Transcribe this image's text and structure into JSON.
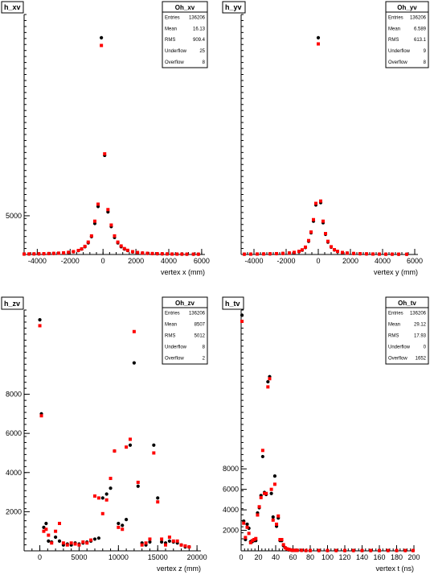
{
  "chart_data": [
    {
      "type": "scatter",
      "title": "h_xv",
      "xlabel": "vertex x (mm)",
      "ylabel": "",
      "xlim": [
        -4800,
        6200
      ],
      "ylim": [
        0,
        31000
      ],
      "xticks": [
        -4000,
        -2000,
        0,
        2000,
        4000,
        6000
      ],
      "xtick_labels": [
        "-4000",
        "-2000",
        "0",
        "2000",
        "4000",
        "6000"
      ],
      "yticks": [
        5000
      ],
      "ytick_labels": [
        "5000"
      ],
      "stats": {
        "title": "Oh_xv",
        "rows": [
          {
            "label": "Entries",
            "value": "136206"
          },
          {
            "label": "Mean",
            "value": "16.13"
          },
          {
            "label": "RMS",
            "value": "909.4"
          },
          {
            "label": "Underflow",
            "value": "25"
          },
          {
            "label": "Overflow",
            "value": "8"
          }
        ]
      },
      "series": [
        {
          "color": "#000000",
          "marker": "circle",
          "x": [
            -4800,
            -4500,
            -4200,
            -3900,
            -3600,
            -3300,
            -3000,
            -2700,
            -2400,
            -2100,
            -1800,
            -1500,
            -1300,
            -1100,
            -900,
            -700,
            -500,
            -300,
            -100,
            100,
            300,
            500,
            700,
            900,
            1100,
            1300,
            1500,
            1800,
            2100,
            2400,
            2700,
            3000,
            3300,
            3600,
            3900,
            4200,
            4500,
            4800,
            5100,
            5500,
            5800
          ],
          "y": [
            50,
            60,
            70,
            80,
            90,
            110,
            130,
            160,
            200,
            260,
            350,
            500,
            700,
            1000,
            1500,
            2300,
            4000,
            6200,
            28000,
            12800,
            5500,
            3600,
            2200,
            1500,
            1000,
            700,
            500,
            330,
            240,
            180,
            140,
            110,
            90,
            80,
            70,
            60,
            50,
            40,
            40,
            40,
            40
          ]
        },
        {
          "color": "#ff0000",
          "marker": "square",
          "x": [
            -4800,
            -4500,
            -4200,
            -3900,
            -3600,
            -3300,
            -3000,
            -2700,
            -2400,
            -2100,
            -1800,
            -1500,
            -1300,
            -1100,
            -900,
            -700,
            -500,
            -300,
            -100,
            100,
            300,
            500,
            700,
            900,
            1100,
            1300,
            1500,
            1800,
            2100,
            2400,
            2700,
            3000,
            3300,
            3600,
            3900,
            4200,
            4500,
            4800,
            5100,
            5500,
            5800
          ],
          "y": [
            60,
            70,
            80,
            90,
            100,
            120,
            140,
            170,
            210,
            280,
            370,
            520,
            720,
            1050,
            1600,
            2400,
            4300,
            6500,
            27000,
            13000,
            5800,
            3800,
            2400,
            1600,
            1100,
            760,
            540,
            360,
            260,
            190,
            150,
            120,
            100,
            90,
            70,
            60,
            50,
            50,
            40,
            40,
            40
          ]
        }
      ]
    },
    {
      "type": "scatter",
      "title": "h_yv",
      "xlabel": "vertex y (mm)",
      "ylabel": "",
      "xlim": [
        -4800,
        6200
      ],
      "ylim": [
        0,
        31000
      ],
      "xticks": [
        -4000,
        -2000,
        0,
        2000,
        4000,
        6000
      ],
      "xtick_labels": [
        "-4000",
        "-2000",
        "0",
        "2000",
        "4000",
        "6000"
      ],
      "yticks": [],
      "ytick_labels": [],
      "stats": {
        "title": "Oh_yv",
        "rows": [
          {
            "label": "Entries",
            "value": "136206"
          },
          {
            "label": "Mean",
            "value": "6.589"
          },
          {
            "label": "RMS",
            "value": "613.1"
          },
          {
            "label": "Underflow",
            "value": "9"
          },
          {
            "label": "Overflow",
            "value": "8"
          }
        ]
      },
      "series": [
        {
          "color": "#000000",
          "marker": "circle",
          "x": [
            -4600,
            -4200,
            -3800,
            -3400,
            -3000,
            -2600,
            -2200,
            -1800,
            -1500,
            -1200,
            -1000,
            -800,
            -600,
            -450,
            -300,
            -150,
            0,
            150,
            300,
            450,
            600,
            800,
            1000,
            1200,
            1500,
            1800,
            2200,
            2600,
            3000,
            3400,
            3800,
            4200,
            4600,
            5000,
            5500
          ],
          "y": [
            40,
            50,
            60,
            70,
            80,
            100,
            130,
            180,
            250,
            380,
            560,
            900,
            1700,
            2800,
            4300,
            6400,
            28000,
            6700,
            4100,
            2600,
            1600,
            950,
            580,
            380,
            240,
            170,
            120,
            90,
            70,
            60,
            50,
            40,
            40,
            30,
            30
          ]
        },
        {
          "color": "#ff0000",
          "marker": "square",
          "x": [
            -4600,
            -4200,
            -3800,
            -3400,
            -3000,
            -2600,
            -2200,
            -1800,
            -1500,
            -1200,
            -1000,
            -800,
            -600,
            -450,
            -300,
            -150,
            0,
            150,
            300,
            450,
            600,
            800,
            1000,
            1200,
            1500,
            1800,
            2200,
            2600,
            3000,
            3400,
            3800,
            4200,
            4600,
            5000,
            5500
          ],
          "y": [
            40,
            50,
            60,
            70,
            90,
            110,
            140,
            190,
            270,
            400,
            600,
            950,
            1800,
            2900,
            4500,
            6600,
            27200,
            6900,
            4300,
            2700,
            1700,
            1000,
            620,
            400,
            260,
            180,
            130,
            100,
            80,
            60,
            50,
            40,
            40,
            40,
            30
          ]
        }
      ]
    },
    {
      "type": "scatter",
      "title": "h_zv",
      "xlabel": "vertex z (mm)",
      "ylabel": "",
      "xlim": [
        -2000,
        20500
      ],
      "ylim": [
        0,
        12300
      ],
      "xticks": [
        0,
        5000,
        10000,
        15000,
        20000
      ],
      "xtick_labels": [
        "0",
        "5000",
        "10000",
        "15000",
        "20000"
      ],
      "yticks": [
        2000,
        4000,
        6000,
        8000
      ],
      "ytick_labels": [
        "2000",
        "4000",
        "6000",
        "8000"
      ],
      "stats": {
        "title": "Oh_zv",
        "rows": [
          {
            "label": "Entries",
            "value": "136206"
          },
          {
            "label": "Mean",
            "value": "8507"
          },
          {
            "label": "RMS",
            "value": "5012"
          },
          {
            "label": "Underflow",
            "value": "8"
          },
          {
            "label": "Overflow",
            "value": "2"
          }
        ]
      },
      "series": [
        {
          "color": "#000000",
          "marker": "circle",
          "x": [
            0,
            200,
            500,
            800,
            1100,
            1500,
            2000,
            2500,
            3000,
            3500,
            4000,
            4500,
            5000,
            5500,
            6000,
            6500,
            7000,
            7500,
            8000,
            8500,
            9000,
            9500,
            10000,
            10500,
            11000,
            11500,
            12000,
            12500,
            13000,
            13500,
            14000,
            14500,
            15000,
            15500,
            16000,
            16500,
            17000,
            17500,
            18000,
            18500,
            19000
          ],
          "y": [
            11800,
            7000,
            1200,
            1400,
            500,
            450,
            700,
            500,
            300,
            350,
            300,
            400,
            350,
            400,
            450,
            500,
            600,
            650,
            2700,
            2900,
            3200,
            5100,
            1400,
            1300,
            1600,
            5400,
            9600,
            3300,
            400,
            300,
            450,
            5400,
            2700,
            450,
            400,
            500,
            450,
            400,
            300,
            200,
            200
          ]
        },
        {
          "color": "#ff0000",
          "marker": "square",
          "x": [
            0,
            200,
            500,
            800,
            1100,
            1500,
            2000,
            2500,
            3000,
            3500,
            4000,
            4500,
            5000,
            5500,
            6000,
            6500,
            7000,
            7500,
            8000,
            8500,
            9000,
            9500,
            10000,
            10500,
            11000,
            11500,
            12000,
            12500,
            13000,
            13500,
            14000,
            14500,
            15000,
            15500,
            16000,
            16500,
            17000,
            17500,
            18000,
            18500,
            19000
          ],
          "y": [
            11500,
            6900,
            1000,
            1100,
            800,
            400,
            1000,
            1400,
            400,
            300,
            400,
            350,
            300,
            450,
            400,
            550,
            2800,
            2700,
            1900,
            2600,
            3700,
            5100,
            1200,
            1100,
            5300,
            5700,
            11200,
            3500,
            300,
            400,
            600,
            5000,
            2500,
            600,
            300,
            700,
            500,
            500,
            300,
            250,
            200
          ]
        }
      ]
    },
    {
      "type": "scatter",
      "title": "h_tv",
      "xlabel": "vertex t (ns)",
      "ylabel": "",
      "xlim": [
        0,
        200
      ],
      "ylim": [
        0,
        23500
      ],
      "xticks": [
        0,
        20,
        40,
        60,
        80,
        100,
        120,
        140,
        160,
        180,
        200
      ],
      "xtick_labels": [
        "0",
        "20",
        "40",
        "60",
        "80",
        "100",
        "120",
        "140",
        "160",
        "180",
        "200"
      ],
      "yticks": [
        2000,
        4000,
        6000,
        8000
      ],
      "ytick_labels": [
        "2000",
        "4000",
        "6000",
        "8000"
      ],
      "stats": {
        "title": "Oh_tv",
        "rows": [
          {
            "label": "Entries",
            "value": "136206"
          },
          {
            "label": "Mean",
            "value": "29.12"
          },
          {
            "label": "RMS",
            "value": "17.93"
          },
          {
            "label": "Underflow",
            "value": "0"
          },
          {
            "label": "Overflow",
            "value": "1652"
          }
        ]
      },
      "series": [
        {
          "color": "#000000",
          "marker": "circle",
          "x": [
            1,
            3,
            5,
            7,
            9,
            11,
            13,
            15,
            17,
            19,
            21,
            23,
            25,
            27,
            29,
            31,
            33,
            35,
            37,
            39,
            41,
            43,
            45,
            47,
            49,
            51,
            53,
            55,
            57,
            59,
            61,
            63,
            65,
            70,
            75,
            80,
            90,
            100,
            110,
            120,
            130,
            140,
            150,
            160,
            170,
            180,
            190,
            199
          ],
          "y": [
            23000,
            2900,
            1100,
            2600,
            2200,
            900,
            900,
            1000,
            1000,
            3700,
            4200,
            5400,
            9200,
            5700,
            5500,
            16500,
            17000,
            5600,
            3300,
            7300,
            2400,
            3200,
            1000,
            1000,
            500,
            300,
            200,
            100,
            100,
            50,
            50,
            50,
            50,
            50,
            30,
            30,
            30,
            30,
            30,
            30,
            30,
            30,
            30,
            30,
            30,
            30,
            30,
            30
          ]
        },
        {
          "color": "#ff0000",
          "marker": "square",
          "x": [
            1,
            3,
            5,
            7,
            9,
            11,
            13,
            15,
            17,
            19,
            21,
            23,
            25,
            27,
            29,
            31,
            33,
            35,
            37,
            39,
            41,
            43,
            45,
            47,
            49,
            51,
            53,
            55,
            57,
            59,
            61,
            63,
            65,
            70,
            75,
            80,
            90,
            100,
            110,
            120,
            130,
            140,
            150,
            160,
            170,
            180,
            190,
            199
          ],
          "y": [
            22400,
            2700,
            1300,
            2300,
            1700,
            800,
            1000,
            1100,
            1200,
            3500,
            4300,
            5200,
            9800,
            5600,
            5600,
            16000,
            16800,
            6000,
            3000,
            6500,
            2600,
            3400,
            1100,
            1100,
            600,
            300,
            200,
            150,
            100,
            60,
            50,
            50,
            50,
            50,
            30,
            30,
            30,
            30,
            30,
            30,
            30,
            30,
            30,
            30,
            30,
            30,
            30,
            30
          ]
        }
      ]
    }
  ]
}
